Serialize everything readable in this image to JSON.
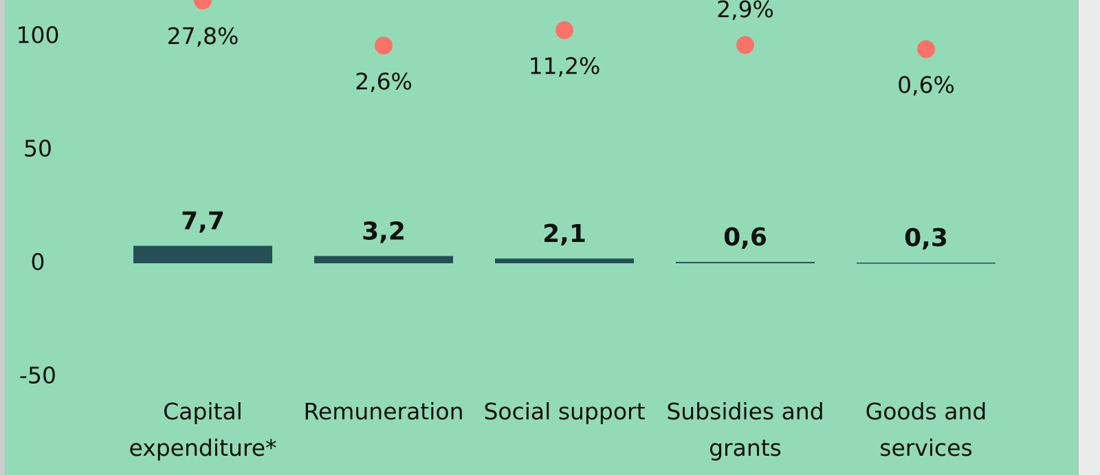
{
  "chart_data": {
    "type": "bar",
    "categories": [
      "Capital expenditure*",
      "Remuneration",
      "Social support",
      "Subsidies and grants",
      "Goods and services"
    ],
    "series": [
      {
        "type": "bar",
        "color": "#234f55",
        "values": [
          7.7,
          3.2,
          2.1,
          0.6,
          0.3
        ],
        "value_labels": [
          "7,7",
          "3,2",
          "2,1",
          "0,6",
          "0,3"
        ]
      },
      {
        "type": "scatter",
        "axis": "y2",
        "color": "#fa7268",
        "values": [
          27.8,
          2.6,
          11.2,
          2.9,
          0.6
        ],
        "value_labels": [
          "27,8%",
          "2,6%",
          "11,2%",
          "2,9%",
          "0,6%"
        ],
        "label_positions": [
          "below",
          "below",
          "below",
          "above",
          "below"
        ]
      }
    ],
    "ylim": [
      -55,
      116
    ],
    "yticks": [
      -50,
      0,
      50,
      100
    ],
    "y2lim": [
      -189,
      28
    ],
    "background": "#93dbb6"
  }
}
